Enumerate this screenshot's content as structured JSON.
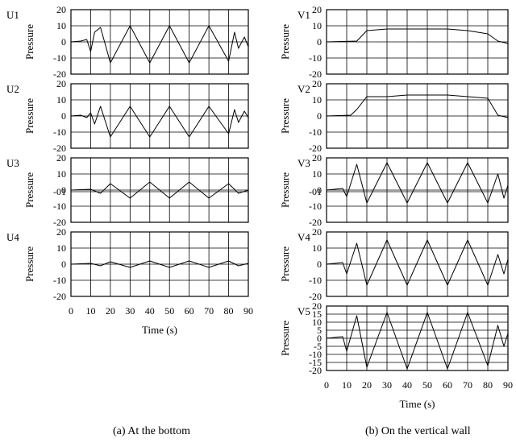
{
  "captions": {
    "left": "(a) At the bottom",
    "right": "(b) On the vertical wall"
  },
  "chart_data": [
    {
      "type": "line",
      "panel": "U1",
      "column": "left",
      "ylabel": "Pressure",
      "xlabel": "",
      "xlim": [
        0,
        90
      ],
      "ylim": [
        -20,
        20
      ],
      "x_ticks": [
        "0",
        "10",
        "20",
        "30",
        "40",
        "50",
        "60",
        "70",
        "80",
        "90"
      ],
      "show_x_ticks": false,
      "y_ticks": [
        "20",
        "10",
        "0",
        "-10",
        "-20"
      ],
      "grid": true,
      "series": [
        {
          "color": "#000000",
          "values": [
            [
              0,
              0
            ],
            [
              5,
              0.5
            ],
            [
              8,
              1.5
            ],
            [
              10,
              -6
            ],
            [
              12,
              6
            ],
            [
              15,
              9
            ],
            [
              20,
              -13
            ],
            [
              30,
              10
            ],
            [
              40,
              -13
            ],
            [
              50,
              10
            ],
            [
              60,
              -13
            ],
            [
              70,
              10
            ],
            [
              80,
              -12
            ],
            [
              83,
              6
            ],
            [
              85,
              -4
            ],
            [
              88,
              3
            ],
            [
              90,
              -3
            ]
          ]
        }
      ]
    },
    {
      "type": "line",
      "panel": "U2",
      "column": "left",
      "ylabel": "Pressure",
      "xlabel": "",
      "xlim": [
        0,
        90
      ],
      "ylim": [
        -20,
        20
      ],
      "x_ticks": [
        "0",
        "10",
        "20",
        "30",
        "40",
        "50",
        "60",
        "70",
        "80",
        "90"
      ],
      "show_x_ticks": false,
      "y_ticks": [
        "20",
        "10",
        "0",
        "-10",
        "-20"
      ],
      "grid": true,
      "series": [
        {
          "color": "#000000",
          "values": [
            [
              0,
              0
            ],
            [
              5,
              0.5
            ],
            [
              8,
              -1
            ],
            [
              10,
              2
            ],
            [
              12,
              -5
            ],
            [
              15,
              6
            ],
            [
              20,
              -13
            ],
            [
              30,
              6
            ],
            [
              40,
              -13
            ],
            [
              50,
              6
            ],
            [
              60,
              -13
            ],
            [
              70,
              6
            ],
            [
              80,
              -11
            ],
            [
              83,
              4
            ],
            [
              85,
              -4
            ],
            [
              88,
              3
            ],
            [
              90,
              -1
            ]
          ]
        }
      ]
    },
    {
      "type": "line",
      "panel": "U3",
      "column": "left",
      "ylabel": "Pressure",
      "xlabel": "",
      "xlim": [
        0,
        90
      ],
      "ylim": [
        -20,
        20
      ],
      "y_tick_labels_shown": [
        "20",
        "10",
        "0",
        "-01",
        "-10",
        "-20"
      ],
      "x_ticks": [
        "0",
        "10",
        "20",
        "30",
        "40",
        "50",
        "60",
        "70",
        "80",
        "90"
      ],
      "show_x_ticks": false,
      "y_ticks": [
        "20",
        "10",
        "0",
        "-01",
        "-10",
        "-20"
      ],
      "grid": true,
      "series": [
        {
          "color": "#000000",
          "values": [
            [
              0,
              0
            ],
            [
              10,
              0.5
            ],
            [
              15,
              -2
            ],
            [
              20,
              4
            ],
            [
              30,
              -5
            ],
            [
              40,
              5
            ],
            [
              50,
              -5
            ],
            [
              60,
              5
            ],
            [
              70,
              -5
            ],
            [
              80,
              4
            ],
            [
              85,
              -2
            ],
            [
              90,
              0
            ]
          ]
        }
      ]
    },
    {
      "type": "line",
      "panel": "U4",
      "column": "left",
      "ylabel": "Pressure",
      "xlabel": "Time (s)",
      "xlim": [
        0,
        90
      ],
      "ylim": [
        -20,
        20
      ],
      "x_ticks": [
        "0",
        "10",
        "20",
        "30",
        "40",
        "50",
        "60",
        "70",
        "80",
        "90"
      ],
      "show_x_ticks": true,
      "y_ticks": [
        "20",
        "10",
        "0",
        "-10",
        "-20"
      ],
      "grid": true,
      "series": [
        {
          "color": "#000000",
          "values": [
            [
              0,
              0
            ],
            [
              10,
              0.5
            ],
            [
              15,
              -1
            ],
            [
              20,
              1.5
            ],
            [
              30,
              -2
            ],
            [
              40,
              2
            ],
            [
              50,
              -2
            ],
            [
              60,
              2
            ],
            [
              70,
              -2
            ],
            [
              80,
              2
            ],
            [
              85,
              -1
            ],
            [
              90,
              0.5
            ]
          ]
        }
      ]
    },
    {
      "type": "line",
      "panel": "V1",
      "column": "right",
      "ylabel": "Pressure",
      "xlabel": "",
      "xlim": [
        0,
        90
      ],
      "ylim": [
        -20,
        20
      ],
      "x_ticks": [
        "0",
        "10",
        "20",
        "30",
        "40",
        "50",
        "60",
        "70",
        "80",
        "90"
      ],
      "show_x_ticks": false,
      "y_ticks": [
        "20",
        "10",
        "0",
        "-10",
        "-20"
      ],
      "grid": true,
      "series": [
        {
          "color": "#000000",
          "values": [
            [
              0,
              0
            ],
            [
              15,
              0.5
            ],
            [
              20,
              7
            ],
            [
              30,
              8
            ],
            [
              40,
              8
            ],
            [
              50,
              8
            ],
            [
              60,
              8
            ],
            [
              70,
              7
            ],
            [
              80,
              5
            ],
            [
              85,
              0.5
            ],
            [
              90,
              -1
            ]
          ]
        }
      ]
    },
    {
      "type": "line",
      "panel": "V2",
      "column": "right",
      "ylabel": "Pressure",
      "xlabel": "",
      "xlim": [
        0,
        90
      ],
      "ylim": [
        -20,
        20
      ],
      "x_ticks": [
        "0",
        "10",
        "20",
        "30",
        "40",
        "50",
        "60",
        "70",
        "80",
        "90"
      ],
      "show_x_ticks": false,
      "y_ticks": [
        "20",
        "10",
        "0",
        "-10",
        "-20"
      ],
      "grid": true,
      "series": [
        {
          "color": "#000000",
          "values": [
            [
              0,
              0
            ],
            [
              12,
              0.5
            ],
            [
              15,
              4
            ],
            [
              20,
              12
            ],
            [
              30,
              12
            ],
            [
              40,
              13
            ],
            [
              50,
              13
            ],
            [
              60,
              13
            ],
            [
              70,
              12
            ],
            [
              80,
              11
            ],
            [
              85,
              0.5
            ],
            [
              90,
              -1
            ]
          ]
        }
      ]
    },
    {
      "type": "line",
      "panel": "V3",
      "column": "right",
      "ylabel": "Pressure",
      "xlabel": "",
      "xlim": [
        0,
        90
      ],
      "ylim": [
        -20,
        20
      ],
      "x_ticks": [
        "0",
        "10",
        "20",
        "30",
        "40",
        "50",
        "60",
        "70",
        "80",
        "90"
      ],
      "show_x_ticks": false,
      "y_ticks": [
        "20",
        "10",
        "0",
        "-01",
        "-10",
        "-20"
      ],
      "grid": true,
      "series": [
        {
          "color": "#000000",
          "values": [
            [
              0,
              0
            ],
            [
              8,
              1
            ],
            [
              10,
              -4
            ],
            [
              15,
              16
            ],
            [
              20,
              -8
            ],
            [
              30,
              17
            ],
            [
              40,
              -8
            ],
            [
              50,
              17
            ],
            [
              60,
              -8
            ],
            [
              70,
              17
            ],
            [
              80,
              -8
            ],
            [
              85,
              10
            ],
            [
              88,
              -5
            ],
            [
              90,
              3
            ]
          ]
        }
      ]
    },
    {
      "type": "line",
      "panel": "V4",
      "column": "right",
      "ylabel": "Pressure",
      "xlabel": "",
      "xlim": [
        0,
        90
      ],
      "ylim": [
        -20,
        20
      ],
      "x_ticks": [
        "0",
        "10",
        "20",
        "30",
        "40",
        "50",
        "60",
        "70",
        "80",
        "90"
      ],
      "show_x_ticks": false,
      "y_ticks": [
        "20",
        "10",
        "0",
        "-10",
        "-20"
      ],
      "grid": true,
      "series": [
        {
          "color": "#000000",
          "values": [
            [
              0,
              0
            ],
            [
              8,
              1
            ],
            [
              10,
              -6
            ],
            [
              15,
              13
            ],
            [
              20,
              -13
            ],
            [
              30,
              15
            ],
            [
              40,
              -13
            ],
            [
              50,
              15
            ],
            [
              60,
              -13
            ],
            [
              70,
              15
            ],
            [
              80,
              -13
            ],
            [
              85,
              6
            ],
            [
              88,
              -6
            ],
            [
              90,
              3
            ]
          ]
        }
      ]
    },
    {
      "type": "line",
      "panel": "V5",
      "column": "right",
      "ylabel": "Pressure",
      "xlabel": "Time (s)",
      "xlim": [
        0,
        90
      ],
      "ylim": [
        -20,
        20
      ],
      "x_ticks": [
        "0",
        "10",
        "20",
        "30",
        "40",
        "50",
        "60",
        "70",
        "80",
        "90"
      ],
      "show_x_ticks": true,
      "y_ticks": [
        "20",
        "15",
        "10",
        "5",
        "0",
        "-5",
        "-10",
        "-15",
        "-20"
      ],
      "grid": true,
      "series": [
        {
          "color": "#000000",
          "values": [
            [
              0,
              0
            ],
            [
              8,
              1
            ],
            [
              10,
              -8
            ],
            [
              15,
              14
            ],
            [
              20,
              -18
            ],
            [
              30,
              16
            ],
            [
              40,
              -19
            ],
            [
              50,
              16
            ],
            [
              60,
              -19
            ],
            [
              70,
              16
            ],
            [
              80,
              -17
            ],
            [
              85,
              8
            ],
            [
              88,
              -5
            ],
            [
              90,
              3
            ]
          ]
        }
      ]
    }
  ]
}
